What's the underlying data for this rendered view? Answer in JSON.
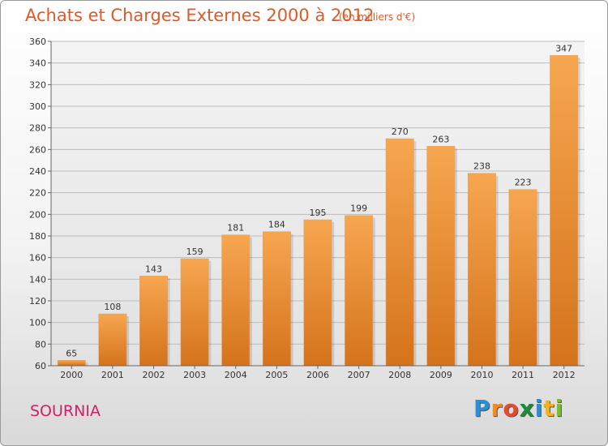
{
  "header": {
    "title": "Achats et Charges Externes 2000 à 2012",
    "subtitle": "(en milliers d'€)"
  },
  "commune": "SOURNIA",
  "brand": {
    "letters": [
      "P",
      "r",
      "o",
      "x",
      "i",
      "t",
      "i"
    ],
    "colors": [
      "#2a8fd6",
      "#f28c1e",
      "#e64b2f",
      "#1a8c3c",
      "#2a8fd6",
      "#f2b21e",
      "#7bbf2a"
    ]
  },
  "chart_data": {
    "type": "bar",
    "title": "Achats et Charges Externes 2000 à 2012",
    "subtitle": "(en milliers d'€)",
    "categories": [
      "2000",
      "2001",
      "2002",
      "2003",
      "2004",
      "2005",
      "2006",
      "2007",
      "2008",
      "2009",
      "2010",
      "2011",
      "2012"
    ],
    "values": [
      65,
      108,
      143,
      159,
      181,
      184,
      195,
      199,
      270,
      263,
      238,
      223,
      347
    ],
    "ylim": [
      60,
      360
    ],
    "yticks": [
      60,
      80,
      100,
      120,
      140,
      160,
      180,
      200,
      220,
      240,
      260,
      280,
      300,
      320,
      340,
      360
    ],
    "grid": true,
    "bar_color_top": "#f7a650",
    "bar_color_bottom": "#d4731c"
  }
}
